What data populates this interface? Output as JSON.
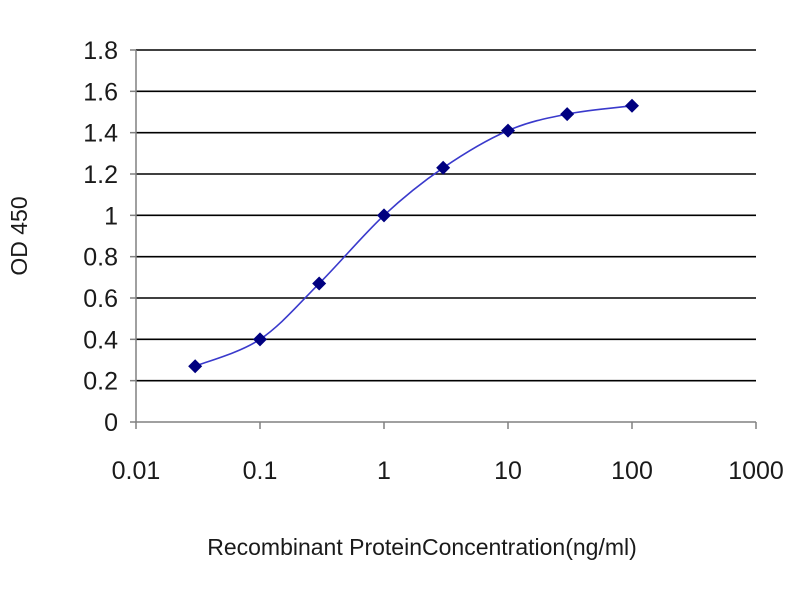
{
  "chart_data": {
    "type": "line",
    "title": "",
    "xlabel": "Recombinant ProteinConcentration(ng/ml)",
    "ylabel": "OD 450",
    "x_scale": "log",
    "xlim": [
      0.01,
      1000
    ],
    "ylim": [
      0,
      1.8
    ],
    "x_ticks": [
      "0.01",
      "0.1",
      "1",
      "10",
      "100",
      "1000"
    ],
    "y_ticks": [
      "0",
      "0.2",
      "0.4",
      "0.6",
      "0.8",
      "1",
      "1.2",
      "1.4",
      "1.6",
      "1.8"
    ],
    "grid": "horizontal",
    "legend": "none",
    "series": [
      {
        "x": [
          0.03,
          0.1,
          0.3,
          1,
          3,
          10,
          30,
          100
        ],
        "values": [
          0.27,
          0.4,
          0.67,
          1.0,
          1.23,
          1.41,
          1.49,
          1.53
        ],
        "color": "#000080"
      }
    ],
    "colors": {
      "line": "#3a3acc",
      "marker": "#000080",
      "grid": "#000000",
      "axis": "#808080"
    }
  }
}
